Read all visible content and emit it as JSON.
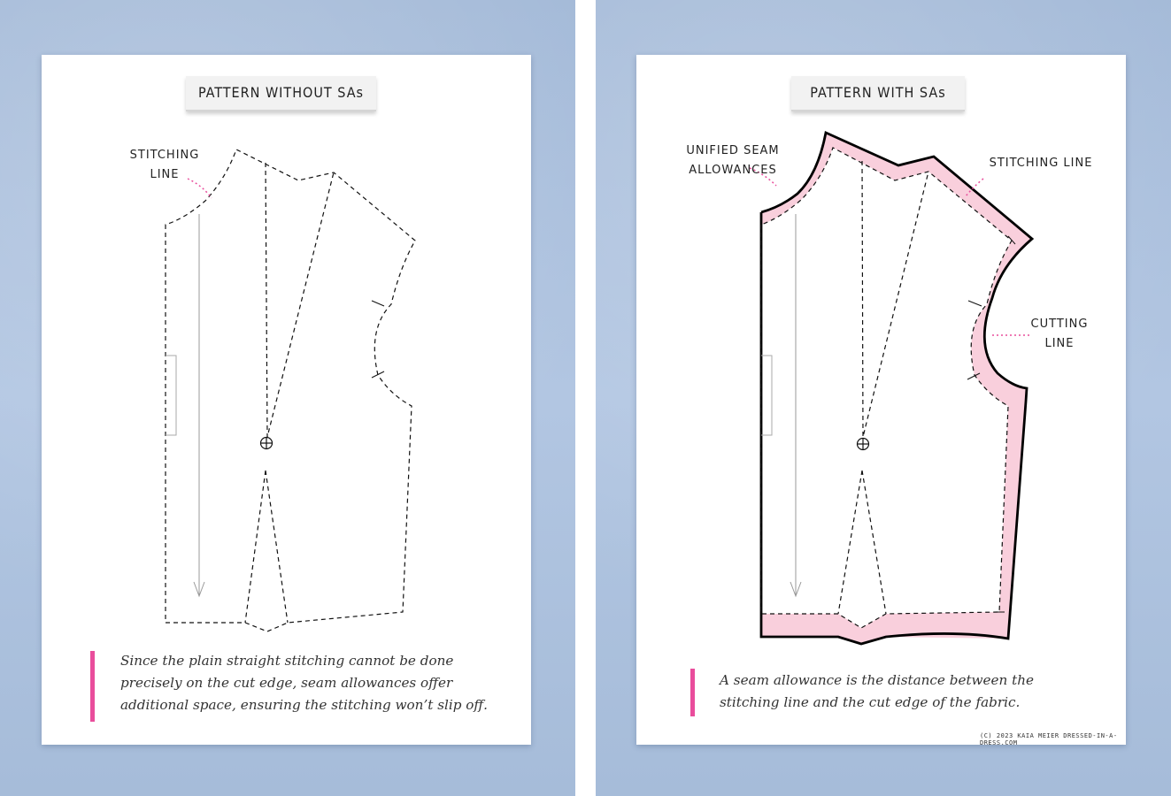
{
  "left": {
    "title": "PATTERN WITHOUT SAs",
    "annotations": {
      "stitching_line": [
        "STITCHING",
        "LINE"
      ]
    },
    "note": "Since the plain straight stitching cannot be done precisely on the cut edge, seam allowances offer additional space, ensuring the stitching won’t slip off."
  },
  "right": {
    "title": "PATTERN WITH SAs",
    "annotations": {
      "unified_seam_allowances": [
        "UNIFIED SEAM",
        "ALLOWANCES"
      ],
      "stitching_line": "STITCHING LINE",
      "cutting_line": [
        "CUTTING",
        "LINE"
      ]
    },
    "note": "A seam allowance is the distance between the stitching line and the cut edge of the fabric.",
    "credit": "(C) 2023 KAIA MEIER  DRESSED-IN-A-DRESS.COM"
  },
  "colors": {
    "accent": "#e94d9c",
    "seam_allowance_fill": "#f9cfdc",
    "background": "#a9bfdc"
  }
}
